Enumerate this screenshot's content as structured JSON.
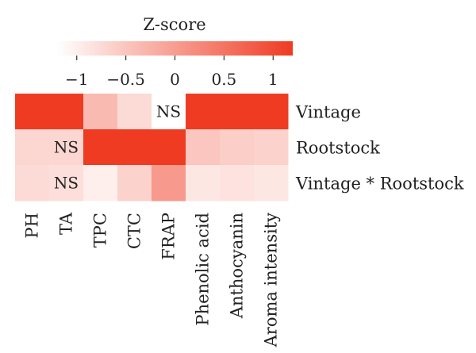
{
  "chart_data": {
    "type": "heatmap",
    "colorbar": {
      "title": "Z-score",
      "range": [
        -1.2,
        1.2
      ],
      "ticks": [
        -1,
        -0.5,
        0,
        0.5,
        1
      ],
      "tick_labels": [
        "−1",
        "−0.5",
        "0",
        "0.5",
        "1"
      ],
      "low_color": "#ffffff",
      "high_color": "#ef3b22"
    },
    "columns": [
      "PH",
      "TA",
      "TPC",
      "CTC",
      "FRAP",
      "Phenolic acid",
      "Anthocyanin",
      "Aroma intensity"
    ],
    "rows": [
      {
        "name": "Vintage",
        "values": [
          1.2,
          1.2,
          -0.35,
          -0.75,
          -1.2,
          1.2,
          1.2,
          1.2
        ],
        "labels": [
          "",
          "",
          "",
          "",
          "NS",
          "",
          "",
          ""
        ]
      },
      {
        "name": "Rootstock",
        "values": [
          -0.7,
          -0.7,
          1.2,
          1.2,
          1.2,
          -0.5,
          -0.6,
          -0.65
        ],
        "labels": [
          "",
          "NS",
          "",
          "",
          "",
          "",
          "",
          ""
        ]
      },
      {
        "name": "Vintage * Rootstock",
        "values": [
          -0.75,
          -0.8,
          -1.0,
          -0.65,
          0.05,
          -0.9,
          -0.85,
          -0.9
        ],
        "labels": [
          "",
          "NS",
          "",
          "",
          "",
          "",
          "",
          ""
        ]
      }
    ]
  }
}
